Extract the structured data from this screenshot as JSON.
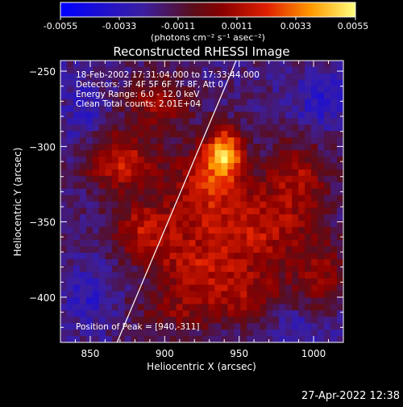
{
  "chart_data": {
    "type": "heatmap",
    "title": "Reconstructed RHESSI Image",
    "xlabel": "Heliocentric X (arcsec)",
    "ylabel": "Heliocentric Y (arcsec)",
    "xlim": [
      830,
      1020
    ],
    "ylim": [
      -430,
      -243
    ],
    "x_ticks": [
      850,
      900,
      950,
      1000
    ],
    "y_ticks": [
      -250,
      -300,
      -350,
      -400
    ],
    "colorbar": {
      "range": [
        -0.0055,
        0.0055
      ],
      "ticks": [
        "-0.0055",
        "-0.0033",
        "-0.0011",
        "0.0011",
        "0.0033",
        "0.0055"
      ],
      "unit_label": "(photons cm⁻² s⁻¹ asec⁻²)"
    },
    "annotations": [
      "18-Feb-2002 17:31:04.000  to  17:33:44.000",
      "Detectors: 3F 4F 5F 6F 7F 8F, Att 0",
      "Energy Range: 6.0 - 12.0 keV",
      "Clean     Total counts: 2.01E+04"
    ],
    "peak_label": "Position of Peak = [940,-311]",
    "peak": [
      940,
      -311
    ],
    "limb_line": [
      [
        868,
        -430
      ],
      [
        948,
        -243
      ]
    ],
    "blobs": [
      {
        "x": 940,
        "y": -305,
        "sx": 9,
        "sy": 12,
        "a": 0.0055
      },
      {
        "x": 925,
        "y": -330,
        "sx": 18,
        "sy": 22,
        "a": 0.0032
      },
      {
        "x": 870,
        "y": -310,
        "sx": 16,
        "sy": 14,
        "a": 0.0036
      },
      {
        "x": 885,
        "y": -355,
        "sx": 15,
        "sy": 13,
        "a": 0.003
      },
      {
        "x": 920,
        "y": -380,
        "sx": 22,
        "sy": 15,
        "a": 0.0028
      },
      {
        "x": 965,
        "y": -355,
        "sx": 22,
        "sy": 20,
        "a": 0.003
      },
      {
        "x": 990,
        "y": -320,
        "sx": 15,
        "sy": 18,
        "a": 0.0025
      },
      {
        "x": 1005,
        "y": -385,
        "sx": 14,
        "sy": 16,
        "a": 0.0022
      },
      {
        "x": 895,
        "y": -270,
        "sx": 14,
        "sy": 12,
        "a": 0.0026
      },
      {
        "x": 910,
        "y": -410,
        "sx": 20,
        "sy": 10,
        "a": 0.0018
      },
      {
        "x": 955,
        "y": -400,
        "sx": 18,
        "sy": 12,
        "a": 0.0022
      },
      {
        "x": 845,
        "y": -280,
        "sx": 10,
        "sy": 18,
        "a": -0.0012
      },
      {
        "x": 1005,
        "y": -270,
        "sx": 14,
        "sy": 14,
        "a": -0.0016
      },
      {
        "x": 850,
        "y": -400,
        "sx": 12,
        "sy": 16,
        "a": -0.0014
      },
      {
        "x": 990,
        "y": -420,
        "sx": 16,
        "sy": 10,
        "a": -0.001
      }
    ],
    "grid": false
  },
  "footer": {
    "timestamp": "27-Apr-2022 12:38"
  }
}
